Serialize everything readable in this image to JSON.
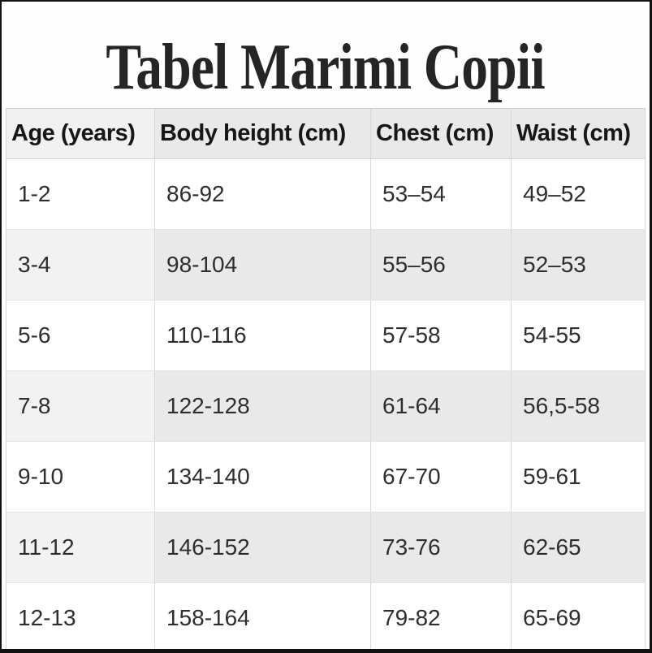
{
  "page": {
    "title": "Tabel Marimi Copii"
  },
  "chart_data": {
    "type": "table",
    "title": "Tabel Marimi Copii",
    "columns": [
      "Age (years)",
      "Body height (cm)",
      "Chest (cm)",
      "Waist (cm)"
    ],
    "column_keys": [
      "age",
      "body-height",
      "chest",
      "waist"
    ],
    "rows": [
      [
        "1-2",
        "86-92",
        "53–54",
        "49–52"
      ],
      [
        "3-4",
        "98-104",
        "55–56",
        "52–53"
      ],
      [
        "5-6",
        "110-116",
        "57-58",
        "54-55"
      ],
      [
        "7-8",
        "122-128",
        "61-64",
        "56,5-58"
      ],
      [
        "9-10",
        "134-140",
        "67-70",
        "59-61"
      ],
      [
        "11-12",
        "146-152",
        "73-76",
        "62-65"
      ],
      [
        "12-13",
        "158-164",
        "79-82",
        "65-69"
      ]
    ]
  },
  "colors": {
    "frame_border": "#121212",
    "header_bg": "#e9e9e9",
    "header_first_col_bg": "#f1f1f1",
    "stripe_row_bg": "#e9e9e9",
    "stripe_first_col_bg": "#f2f2f2",
    "plain_row_bg": "#ffffff",
    "grid_border": "#d9d9d9",
    "title_text": "#252525",
    "cell_text": "#2e2e2e"
  }
}
